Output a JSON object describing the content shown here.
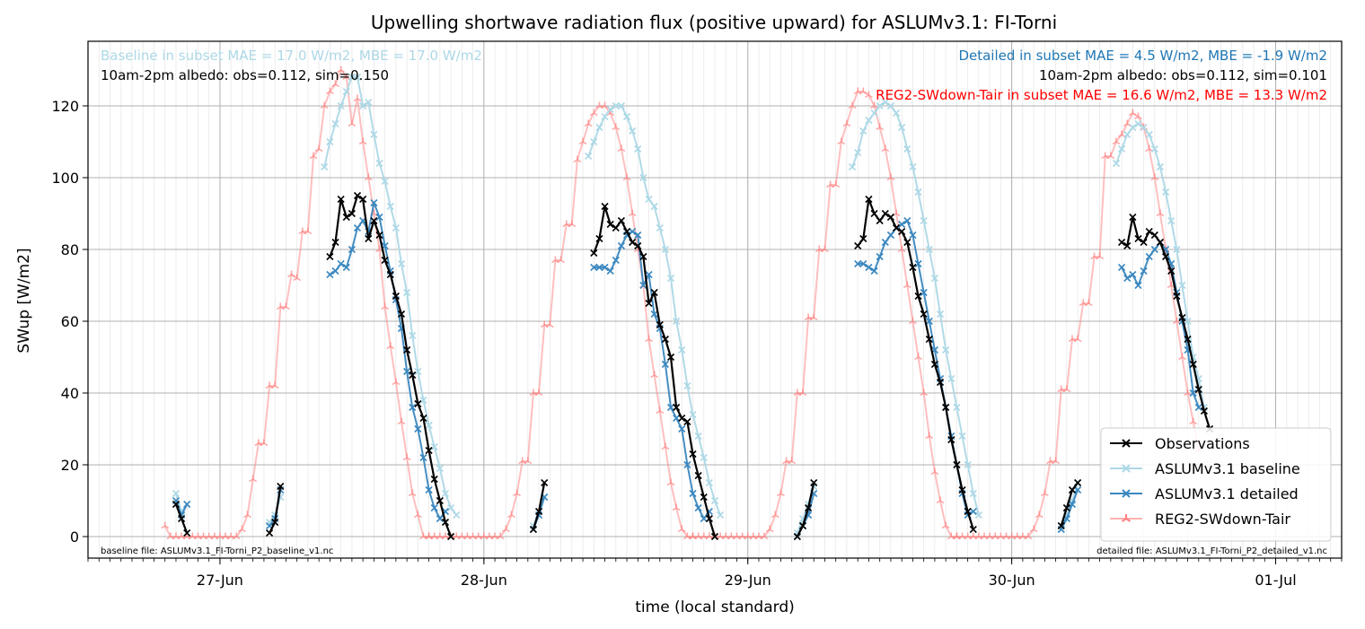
{
  "chart_data": {
    "type": "line",
    "title": "Upwelling shortwave radiation flux (positive upward) for ASLUMv3.1: FI-Torni",
    "xlabel": "time (local standard)",
    "ylabel": "SWup [W/m2]",
    "xlim": [
      "2023-06-26T12:00",
      "2023-07-01T06:00"
    ],
    "ylim": [
      -6,
      138
    ],
    "yticks": [
      0,
      20,
      40,
      60,
      80,
      100,
      120
    ],
    "xticks": [
      {
        "t": "2023-06-27T00:00",
        "label": "27-Jun"
      },
      {
        "t": "2023-06-28T00:00",
        "label": "28-Jun"
      },
      {
        "t": "2023-06-29T00:00",
        "label": "29-Jun"
      },
      {
        "t": "2023-06-30T00:00",
        "label": "30-Jun"
      },
      {
        "t": "2023-07-01T00:00",
        "label": "01-Jul"
      }
    ],
    "grid": true,
    "legend": {
      "position": "lower right",
      "entries": [
        "Observations",
        "ASLUMv3.1 baseline",
        "ASLUMv3.1 detailed",
        "REG2-SWdown-Tair"
      ]
    },
    "annotations": {
      "top_left": [
        "Baseline in subset MAE = 17.0 W/m2, MBE = 17.0 W/m2",
        "10am-2pm albedo: obs=0.112, sim=0.150"
      ],
      "top_right": [
        "Detailed in subset MAE = 4.5 W/m2, MBE = -1.9 W/m2",
        "10am-2pm albedo: obs=0.112, sim=0.101",
        "REG2-SWdown-Tair in subset MAE = 16.6 W/m2, MBE = 13.3 W/m2"
      ],
      "bottom_left": "baseline file: ASLUMv3.1_FI-Torni_P2_baseline_v1.nc",
      "bottom_right": "detailed file: ASLUMv3.1_FI-Torni_P2_detailed_v1.nc"
    },
    "series": [
      {
        "name": "REG2-SWdown-Tair",
        "color": "#ff7f7f",
        "segments": [
          {
            "start": "2023-06-26T19:00",
            "step_minutes": 30,
            "values": [
              3,
              0,
              0,
              0,
              0,
              0,
              0,
              0,
              0,
              0,
              0,
              0,
              0,
              0,
              2,
              6,
              16,
              26,
              26,
              42,
              42,
              64,
              64,
              73,
              72,
              85,
              85,
              106,
              108,
              120,
              124,
              126,
              130,
              128,
              115,
              122,
              110,
              100,
              90,
              80,
              64,
              53,
              43,
              32,
              22,
              12,
              6,
              0,
              0
            ]
          },
          {
            "start": "2023-06-27T19:00",
            "step_minutes": 30,
            "values": [
              0,
              0,
              0,
              0,
              0,
              0,
              0,
              0,
              0,
              0,
              0,
              0,
              0,
              0,
              2,
              6,
              12,
              21,
              21,
              40,
              40,
              59,
              59,
              77,
              77,
              87,
              87,
              105,
              110,
              115,
              118,
              120,
              120,
              118,
              114,
              108,
              100,
              90,
              80,
              70,
              55,
              45,
              35,
              25,
              15,
              8,
              2,
              0,
              0
            ]
          },
          {
            "start": "2023-06-28T19:00",
            "step_minutes": 30,
            "values": [
              0,
              0,
              0,
              0,
              0,
              0,
              0,
              0,
              0,
              0,
              0,
              0,
              0,
              0,
              2,
              6,
              12,
              21,
              21,
              40,
              40,
              61,
              61,
              80,
              80,
              98,
              98,
              110,
              115,
              120,
              124,
              124,
              123,
              120,
              114,
              108,
              100,
              90,
              80,
              70,
              60,
              50,
              40,
              28,
              18,
              10,
              3,
              0,
              0
            ]
          },
          {
            "start": "2023-06-29T19:00",
            "step_minutes": 30,
            "values": [
              0,
              0,
              0,
              0,
              0,
              0,
              0,
              0,
              0,
              0,
              0,
              0,
              0,
              0,
              2,
              6,
              12,
              21,
              21,
              41,
              41,
              55,
              55,
              65,
              65,
              78,
              78,
              106,
              106,
              110,
              112,
              115,
              118,
              117,
              114,
              108,
              100,
              90,
              80,
              70,
              60,
              50,
              40,
              32,
              24
            ]
          }
        ]
      },
      {
        "name": "ASLUMv3.1 baseline",
        "color": "#add8e6",
        "segments": [
          {
            "start": "2023-06-26T20:00",
            "step_minutes": 30,
            "values": [
              12,
              7,
              9
            ]
          },
          {
            "start": "2023-06-27T04:30",
            "step_minutes": 30,
            "values": [
              4,
              6,
              11
            ]
          },
          {
            "start": "2023-06-27T09:30",
            "step_minutes": 30,
            "values": [
              103,
              110,
              115,
              120,
              124,
              128,
              128,
              120,
              121,
              112,
              104,
              99,
              92,
              86,
              76,
              68,
              56,
              46,
              38,
              31,
              25,
              19,
              12,
              8,
              6
            ]
          },
          {
            "start": "2023-06-28T04:30",
            "step_minutes": 30,
            "values": [
              3,
              7,
              11
            ]
          },
          {
            "start": "2023-06-28T09:30",
            "step_minutes": 30,
            "values": [
              106,
              110,
              114,
              117,
              119,
              120,
              120,
              117,
              113,
              108,
              100,
              94,
              92,
              86,
              80,
              72,
              60,
              52,
              42,
              34,
              28,
              22,
              15,
              10,
              6
            ]
          },
          {
            "start": "2023-06-29T04:30",
            "step_minutes": 30,
            "values": [
              1,
              5,
              9,
              14
            ]
          },
          {
            "start": "2023-06-29T09:30",
            "step_minutes": 30,
            "values": [
              103,
              107,
              113,
              116,
              118,
              120,
              121,
              120,
              118,
              114,
              108,
              103,
              96,
              88,
              80,
              72,
              62,
              52,
              44,
              36,
              28,
              20,
              12,
              6
            ]
          },
          {
            "start": "2023-06-30T04:30",
            "step_minutes": 30,
            "values": [
              2,
              6,
              10,
              15
            ]
          },
          {
            "start": "2023-06-30T09:30",
            "step_minutes": 30,
            "values": [
              104,
              108,
              112,
              114,
              115,
              114,
              112,
              108,
              103,
              96,
              88,
              80,
              70,
              60,
              50,
              44,
              36
            ]
          }
        ]
      },
      {
        "name": "ASLUMv3.1 detailed",
        "color": "#3a87bf",
        "segments": [
          {
            "start": "2023-06-26T20:00",
            "step_minutes": 30,
            "values": [
              10,
              6,
              9
            ]
          },
          {
            "start": "2023-06-27T04:30",
            "step_minutes": 30,
            "values": [
              3,
              5,
              13
            ]
          },
          {
            "start": "2023-06-27T10:00",
            "step_minutes": 30,
            "values": [
              73,
              74,
              76,
              75,
              80,
              86,
              88,
              85,
              93,
              89,
              81,
              74,
              66,
              58,
              46,
              36,
              30,
              22,
              13,
              8,
              5,
              7
            ]
          },
          {
            "start": "2023-06-28T04:30",
            "step_minutes": 30,
            "values": [
              2,
              6,
              11
            ]
          },
          {
            "start": "2023-06-28T10:00",
            "step_minutes": 30,
            "values": [
              75,
              75,
              75,
              74,
              77,
              81,
              84,
              85,
              84,
              70,
              73,
              62,
              58,
              48,
              36,
              33,
              30,
              20,
              12,
              8,
              5,
              7
            ]
          },
          {
            "start": "2023-06-29T04:30",
            "step_minutes": 30,
            "values": [
              0,
              3,
              6,
              12
            ]
          },
          {
            "start": "2023-06-29T10:00",
            "step_minutes": 30,
            "values": [
              76,
              76,
              75,
              74,
              78,
              82,
              84,
              86,
              87,
              88,
              84,
              76,
              68,
              60,
              52,
              44,
              36,
              28,
              20,
              12,
              6,
              7
            ]
          },
          {
            "start": "2023-06-30T04:30",
            "step_minutes": 30,
            "values": [
              2,
              5,
              9,
              13
            ]
          },
          {
            "start": "2023-06-30T10:00",
            "step_minutes": 30,
            "values": [
              75,
              72,
              73,
              70,
              74,
              78,
              80,
              82,
              80,
              76,
              68,
              60,
              52,
              40,
              36
            ]
          }
        ]
      },
      {
        "name": "Observations",
        "color": "#000000",
        "segments": [
          {
            "start": "2023-06-26T20:00",
            "step_minutes": 30,
            "values": [
              9,
              5,
              1
            ]
          },
          {
            "start": "2023-06-27T04:30",
            "step_minutes": 30,
            "values": [
              1,
              4,
              14
            ]
          },
          {
            "start": "2023-06-27T10:00",
            "step_minutes": 30,
            "values": [
              78,
              82,
              94,
              89,
              90,
              95,
              94,
              83,
              88,
              84,
              77,
              73,
              67,
              62,
              52,
              45,
              37,
              33,
              24,
              16,
              10,
              4,
              0
            ]
          },
          {
            "start": "2023-06-28T04:30",
            "step_minutes": 30,
            "values": [
              2,
              7,
              15
            ]
          },
          {
            "start": "2023-06-28T10:00",
            "step_minutes": 30,
            "values": [
              79,
              83,
              92,
              87,
              86,
              88,
              85,
              82,
              81,
              78,
              65,
              68,
              59,
              55,
              50,
              36,
              33,
              32,
              23,
              17,
              11,
              5,
              0
            ]
          },
          {
            "start": "2023-06-29T04:30",
            "step_minutes": 30,
            "values": [
              0,
              3,
              8,
              15
            ]
          },
          {
            "start": "2023-06-29T10:00",
            "step_minutes": 30,
            "values": [
              81,
              83,
              94,
              90,
              88,
              90,
              89,
              86,
              85,
              82,
              75,
              67,
              62,
              55,
              48,
              43,
              36,
              27,
              20,
              13,
              7,
              2
            ]
          },
          {
            "start": "2023-06-30T04:30",
            "step_minutes": 30,
            "values": [
              3,
              8,
              13,
              15
            ]
          },
          {
            "start": "2023-06-30T10:00",
            "step_minutes": 30,
            "values": [
              82,
              81,
              89,
              83,
              82,
              85,
              84,
              82,
              78,
              74,
              67,
              61,
              55,
              48,
              41,
              35,
              30
            ]
          }
        ]
      }
    ]
  }
}
